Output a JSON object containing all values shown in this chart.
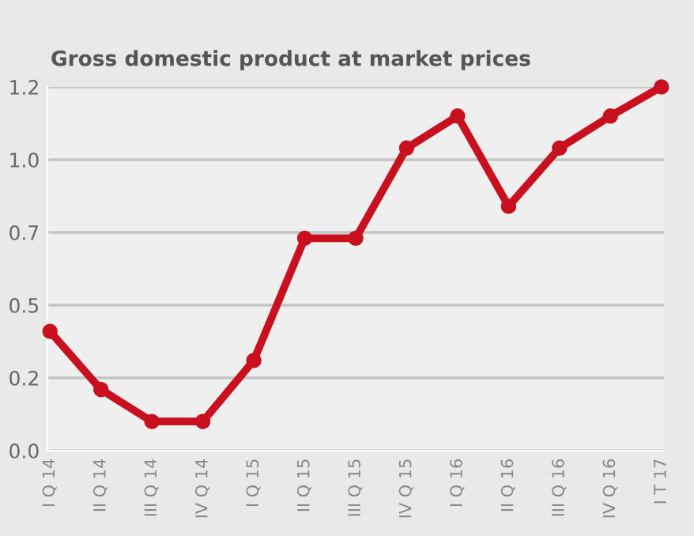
{
  "chart_data": {
    "type": "line",
    "title": "Gross domestic product at market prices",
    "categories": [
      "I Q 14",
      "II Q 14",
      "III Q 14",
      "IV Q 14",
      "I Q 15",
      "II Q 15",
      "III Q 15",
      "IV Q 15",
      "I Q 16",
      "II Q 16",
      "III Q 16",
      "IV Q 16",
      "I T 17"
    ],
    "series": [
      {
        "color": "#c8101e",
        "values": [
          0.41,
          0.21,
          0.1,
          0.1,
          0.31,
          0.73,
          0.73,
          1.04,
          1.15,
          0.84,
          1.04,
          1.15,
          1.25
        ]
      }
    ],
    "ylim": [
      0,
      1.25
    ],
    "yticks": [
      {
        "value": 0,
        "label": "0.0"
      },
      {
        "value": 0.25,
        "label": "0.2"
      },
      {
        "value": 0.5,
        "label": "0.5"
      },
      {
        "value": 0.75,
        "label": "0.7"
      },
      {
        "value": 1.0,
        "label": "1.0"
      },
      {
        "value": 1.25,
        "label": "1.2"
      }
    ],
    "grid": "y",
    "marker": "circle",
    "line_style": "solid",
    "legend": false
  }
}
